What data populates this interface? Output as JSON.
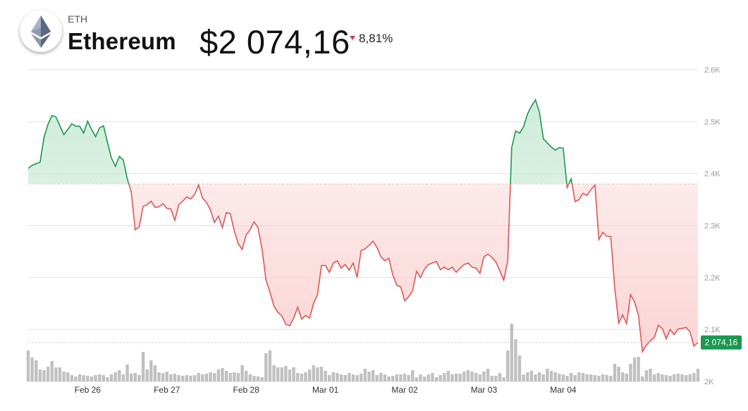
{
  "header": {
    "ticker": "ETH",
    "name": "Ethereum",
    "price": "$2 074,16",
    "change": "8,81%",
    "logo_icon": "ethereum-logo-icon",
    "change_icon": "down-triangle-icon"
  },
  "colors": {
    "up": "#1a9850",
    "down": "#e05555",
    "up_fill": "#cdebd9",
    "down_fill": "#fbd3d3",
    "volume": "#c0c0c0",
    "grid": "#e0e0e0",
    "baseline": "#c8c8c8",
    "price_badge": "#1a9850"
  },
  "chart_data": {
    "type": "area",
    "baseline": 2380,
    "current_price_label": "2 074,16",
    "ylim": [
      2000,
      2600
    ],
    "y_ticks": [
      {
        "value": 2600,
        "label": "2.6K"
      },
      {
        "value": 2500,
        "label": "2.5K"
      },
      {
        "value": 2400,
        "label": "2.4K"
      },
      {
        "value": 2300,
        "label": "2.3K"
      },
      {
        "value": 2200,
        "label": "2.2K"
      },
      {
        "value": 2100,
        "label": "2.1K"
      },
      {
        "value": 2000,
        "label": "2K"
      }
    ],
    "x_ticks": [
      {
        "index": 15,
        "label": "Feb 26"
      },
      {
        "index": 35,
        "label": "Feb 27"
      },
      {
        "index": 55,
        "label": "Feb 28"
      },
      {
        "index": 75,
        "label": "Mar 01"
      },
      {
        "index": 95,
        "label": "Mar 02"
      },
      {
        "index": 115,
        "label": "Mar 03"
      },
      {
        "index": 135,
        "label": "Mar 04"
      }
    ],
    "price": [
      2410,
      2416,
      2419,
      2422,
      2470,
      2495,
      2512,
      2509,
      2492,
      2475,
      2485,
      2496,
      2491,
      2491,
      2478,
      2501,
      2485,
      2471,
      2488,
      2492,
      2460,
      2430,
      2414,
      2433,
      2426,
      2390,
      2365,
      2292,
      2297,
      2337,
      2340,
      2347,
      2335,
      2336,
      2342,
      2333,
      2332,
      2310,
      2340,
      2347,
      2355,
      2351,
      2360,
      2378,
      2353,
      2344,
      2330,
      2306,
      2318,
      2296,
      2325,
      2323,
      2290,
      2265,
      2254,
      2282,
      2292,
      2307,
      2296,
      2255,
      2195,
      2172,
      2145,
      2133,
      2126,
      2110,
      2107,
      2122,
      2143,
      2120,
      2127,
      2122,
      2150,
      2167,
      2223,
      2223,
      2210,
      2228,
      2232,
      2218,
      2225,
      2214,
      2228,
      2200,
      2252,
      2255,
      2262,
      2270,
      2258,
      2240,
      2232,
      2237,
      2205,
      2185,
      2182,
      2155,
      2163,
      2175,
      2212,
      2200,
      2216,
      2225,
      2228,
      2231,
      2215,
      2220,
      2215,
      2220,
      2210,
      2218,
      2225,
      2228,
      2220,
      2218,
      2208,
      2240,
      2245,
      2239,
      2230,
      2213,
      2195,
      2232,
      2450,
      2482,
      2478,
      2490,
      2515,
      2530,
      2542,
      2518,
      2467,
      2459,
      2451,
      2445,
      2450,
      2449,
      2373,
      2390,
      2346,
      2350,
      2362,
      2358,
      2369,
      2378,
      2273,
      2287,
      2279,
      2279,
      2180,
      2112,
      2128,
      2111,
      2167,
      2153,
      2127,
      2057,
      2070,
      2078,
      2085,
      2108,
      2102,
      2082,
      2100,
      2090,
      2101,
      2102,
      2104,
      2095,
      2068,
      2075
    ],
    "volume": [
      44,
      34,
      30,
      17,
      16,
      21,
      29,
      20,
      20,
      14,
      13,
      9,
      7,
      10,
      9,
      8,
      7,
      9,
      10,
      9,
      6,
      10,
      13,
      16,
      10,
      24,
      11,
      12,
      9,
      42,
      17,
      30,
      23,
      13,
      12,
      14,
      10,
      11,
      9,
      8,
      9,
      8,
      9,
      12,
      10,
      11,
      13,
      12,
      17,
      19,
      15,
      12,
      13,
      12,
      23,
      15,
      10,
      8,
      7,
      6,
      40,
      44,
      23,
      20,
      20,
      22,
      17,
      20,
      12,
      11,
      13,
      17,
      23,
      20,
      21,
      15,
      9,
      13,
      12,
      10,
      9,
      12,
      10,
      9,
      11,
      18,
      14,
      16,
      9,
      12,
      10,
      7,
      8,
      10,
      10,
      11,
      9,
      16,
      6,
      10,
      7,
      10,
      12,
      6,
      9,
      12,
      15,
      10,
      11,
      11,
      14,
      16,
      14,
      12,
      10,
      14,
      18,
      8,
      8,
      12,
      6,
      44,
      82,
      60,
      37,
      10,
      13,
      15,
      10,
      13,
      10,
      18,
      15,
      13,
      11,
      10,
      8,
      12,
      9,
      13,
      12,
      10,
      10,
      9,
      8,
      10,
      9,
      8,
      25,
      21,
      13,
      11,
      25,
      34,
      35,
      7,
      16,
      18,
      10,
      12,
      10,
      9,
      8,
      10,
      11,
      10,
      9,
      10,
      12,
      18
    ]
  }
}
